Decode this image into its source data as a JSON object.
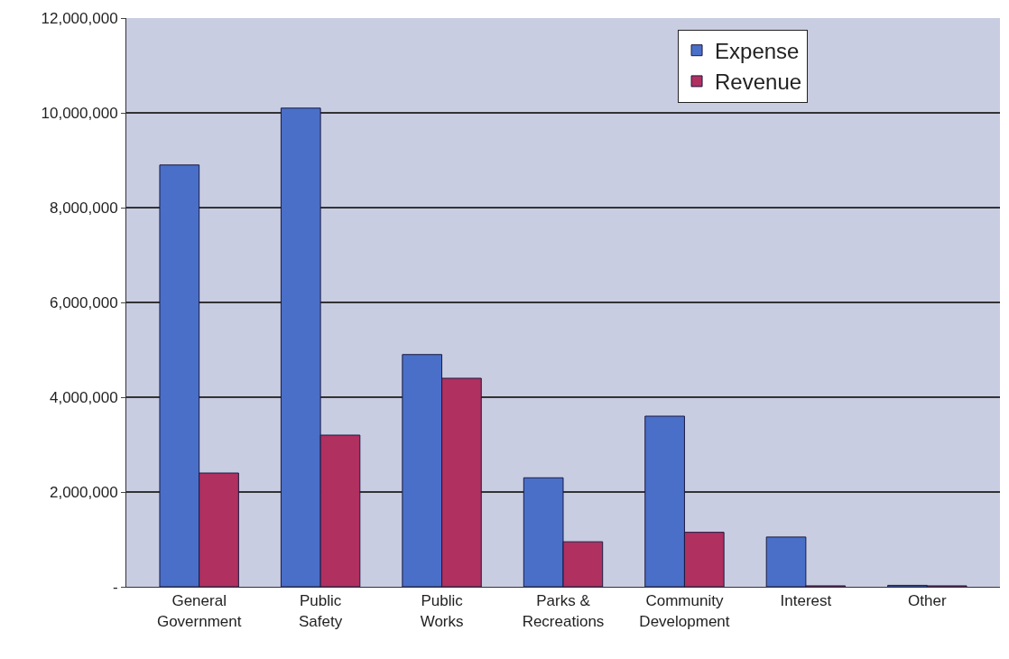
{
  "chart_data": {
    "type": "bar",
    "categories": [
      "General\nGovernment",
      "Public\nSafety",
      "Public\nWorks",
      "Parks &\nRecreations",
      "Community\nDevelopment",
      "Interest",
      "Other"
    ],
    "series": [
      {
        "name": "Expense",
        "color": "#4a6fc8",
        "values": [
          8900000,
          10100000,
          4900000,
          2300000,
          3600000,
          1050000,
          30000
        ]
      },
      {
        "name": "Revenue",
        "color": "#b03060",
        "values": [
          2400000,
          3200000,
          4400000,
          950000,
          1150000,
          20000,
          20000
        ]
      }
    ],
    "ylim": [
      0,
      12000000
    ],
    "yticks": [
      {
        "value": 0,
        "label": "-"
      },
      {
        "value": 2000000,
        "label": "2,000,000"
      },
      {
        "value": 4000000,
        "label": "4,000,000"
      },
      {
        "value": 6000000,
        "label": "6,000,000"
      },
      {
        "value": 8000000,
        "label": "8,000,000"
      },
      {
        "value": 10000000,
        "label": "10,000,000"
      },
      {
        "value": 12000000,
        "label": "12,000,000"
      }
    ],
    "grid": "y",
    "legend": "top right"
  }
}
